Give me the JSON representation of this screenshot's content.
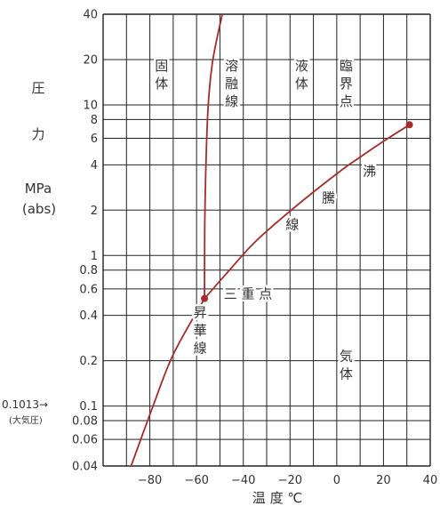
{
  "chart_data": {
    "type": "line",
    "title": "",
    "xlabel": "温 度 ℃",
    "ylabel_lines": [
      "圧",
      "力",
      "MPa",
      "(abs)"
    ],
    "xlim": [
      -100,
      40
    ],
    "ylim": [
      0.04,
      40
    ],
    "yscale": "log",
    "grid": true,
    "x_ticks": [
      -80,
      -60,
      -40,
      -20,
      0,
      20,
      40
    ],
    "x_tick_labels": [
      "−80",
      "−60",
      "−40",
      "−20",
      "0",
      "20",
      "40"
    ],
    "y_ticks": [
      0.04,
      0.06,
      0.08,
      0.1,
      0.2,
      0.4,
      0.6,
      0.8,
      1,
      2,
      4,
      6,
      8,
      10,
      20,
      40
    ],
    "y_tick_labels": [
      "0.04",
      "0.06",
      "0.08",
      "0.1",
      "0.2",
      "0.4",
      "0.6",
      "0.8",
      "1",
      "2",
      "4",
      "6",
      "8",
      "10",
      "20",
      "40"
    ],
    "y_annotation": {
      "value": "0.1013→",
      "note": "(大気圧)"
    },
    "series": [
      {
        "role": "sublimation",
        "points": [
          [
            -88,
            0.04
          ],
          [
            -78.5,
            0.1013
          ],
          [
            -70,
            0.22
          ],
          [
            -56.6,
            0.518
          ]
        ]
      },
      {
        "role": "melting",
        "points": [
          [
            -56.6,
            0.518
          ],
          [
            -56.5,
            1.5
          ],
          [
            -56,
            4
          ],
          [
            -55,
            10
          ],
          [
            -53,
            20
          ],
          [
            -49,
            40
          ]
        ]
      },
      {
        "role": "boiling",
        "points": [
          [
            -56.6,
            0.518
          ],
          [
            -45,
            0.83
          ],
          [
            -35,
            1.23
          ],
          [
            -20,
            1.97
          ],
          [
            0,
            3.49
          ],
          [
            10,
            4.5
          ],
          [
            20,
            5.73
          ],
          [
            31.1,
            7.38
          ]
        ]
      }
    ],
    "markers": [
      {
        "name": "triple-point",
        "x": -56.6,
        "y": 0.518
      },
      {
        "name": "critical-point",
        "x": 31.1,
        "y": 7.38
      }
    ],
    "region_labels": [
      {
        "text": "固体",
        "x": -75,
        "y": 17,
        "orient": "vertical"
      },
      {
        "text": "溶融線",
        "x": -45,
        "y": 17,
        "orient": "vertical"
      },
      {
        "text": "液体",
        "x": -15,
        "y": 17,
        "orient": "vertical"
      },
      {
        "text": "臨界点",
        "x": 4,
        "y": 17,
        "orient": "vertical"
      },
      {
        "text": "沸",
        "x": 14,
        "y": 3.4,
        "orient": "vertical"
      },
      {
        "text": "騰",
        "x": -3.5,
        "y": 2.25,
        "orient": "vertical"
      },
      {
        "text": "線",
        "x": -19,
        "y": 1.5,
        "orient": "vertical"
      },
      {
        "text": "三 重 点",
        "x": -38,
        "y": 0.52,
        "orient": "horizontal"
      },
      {
        "text": "昇華線",
        "x": -58.5,
        "y": 0.39,
        "orient": "vertical"
      },
      {
        "text": "気体",
        "x": 4,
        "y": 0.2,
        "orient": "vertical"
      }
    ],
    "colors": {
      "curve": "#a82a2a",
      "grid": "#222222",
      "text": "#333333"
    }
  }
}
